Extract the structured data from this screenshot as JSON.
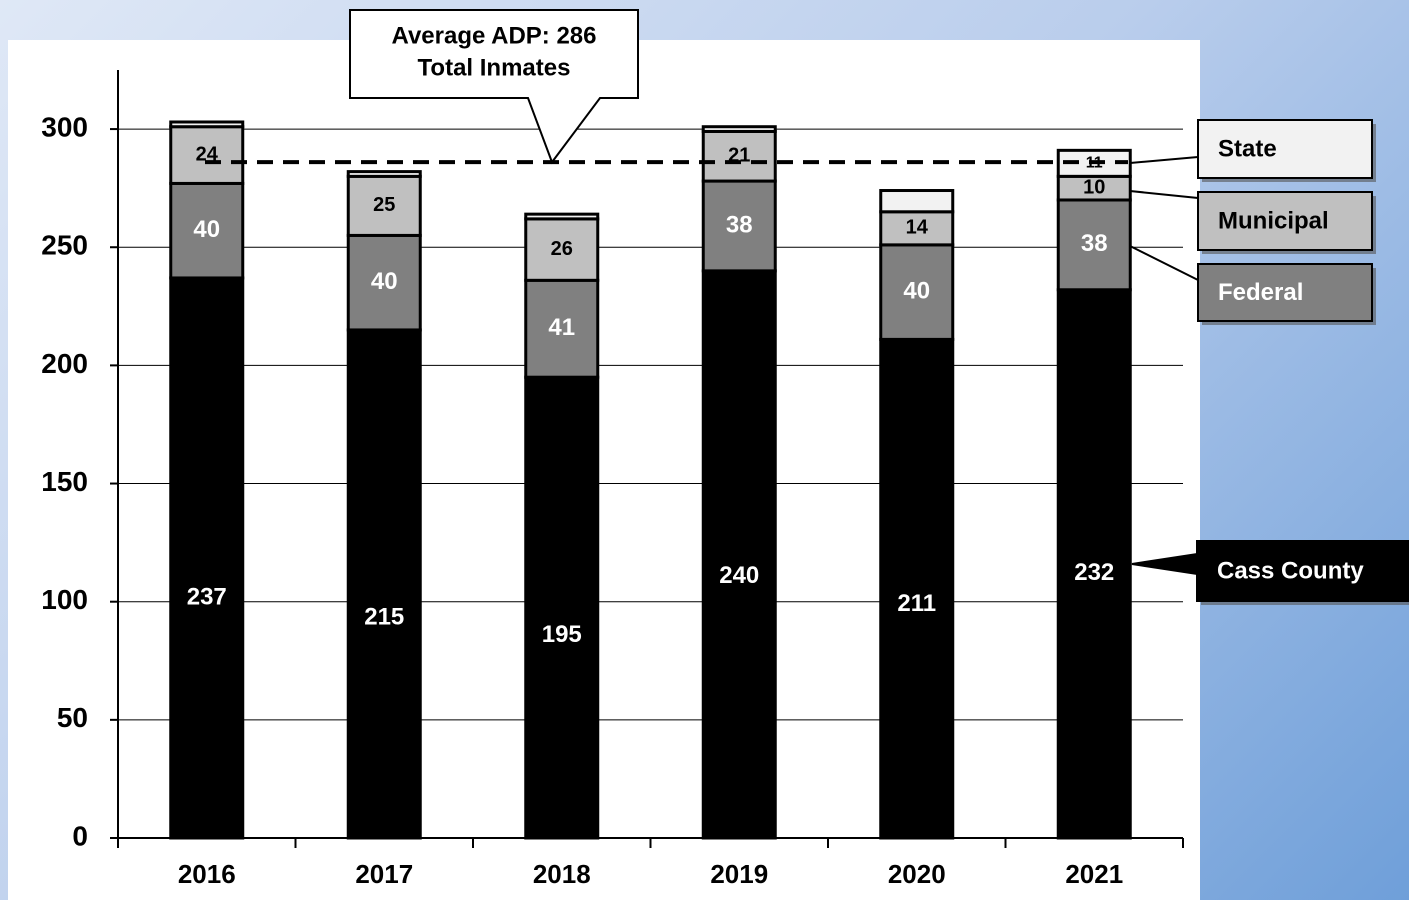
{
  "chart_data": {
    "type": "stacked_bar",
    "categories": [
      "2016",
      "2017",
      "2018",
      "2019",
      "2020",
      "2021"
    ],
    "series": [
      {
        "name": "Cass County",
        "color": "#000000",
        "values": [
          237,
          215,
          195,
          240,
          211,
          232
        ],
        "value_labels": [
          "237",
          "215",
          "195",
          "240",
          "211",
          "232"
        ]
      },
      {
        "name": "Federal",
        "color": "#808080",
        "values": [
          40,
          40,
          41,
          38,
          40,
          38
        ],
        "value_labels": [
          "40",
          "40",
          "41",
          "38",
          "40",
          "38"
        ]
      },
      {
        "name": "Municipal",
        "color": "#c0c0c0",
        "values": [
          24,
          25,
          26,
          21,
          14,
          10
        ],
        "value_labels": [
          "24",
          "25",
          "26",
          "21",
          "14",
          "10"
        ]
      },
      {
        "name": "State",
        "color": "#f2f2f2",
        "values": [
          2,
          2,
          2,
          2,
          9,
          11
        ],
        "value_labels": [
          null,
          null,
          null,
          null,
          null,
          "11"
        ]
      }
    ],
    "ylim": [
      0,
      325
    ],
    "yticks": [
      0,
      50,
      100,
      150,
      200,
      250,
      300
    ],
    "grid": true,
    "reference_line": {
      "value": 286,
      "text": [
        "Average ADP:  286",
        "Total Inmates"
      ]
    }
  }
}
